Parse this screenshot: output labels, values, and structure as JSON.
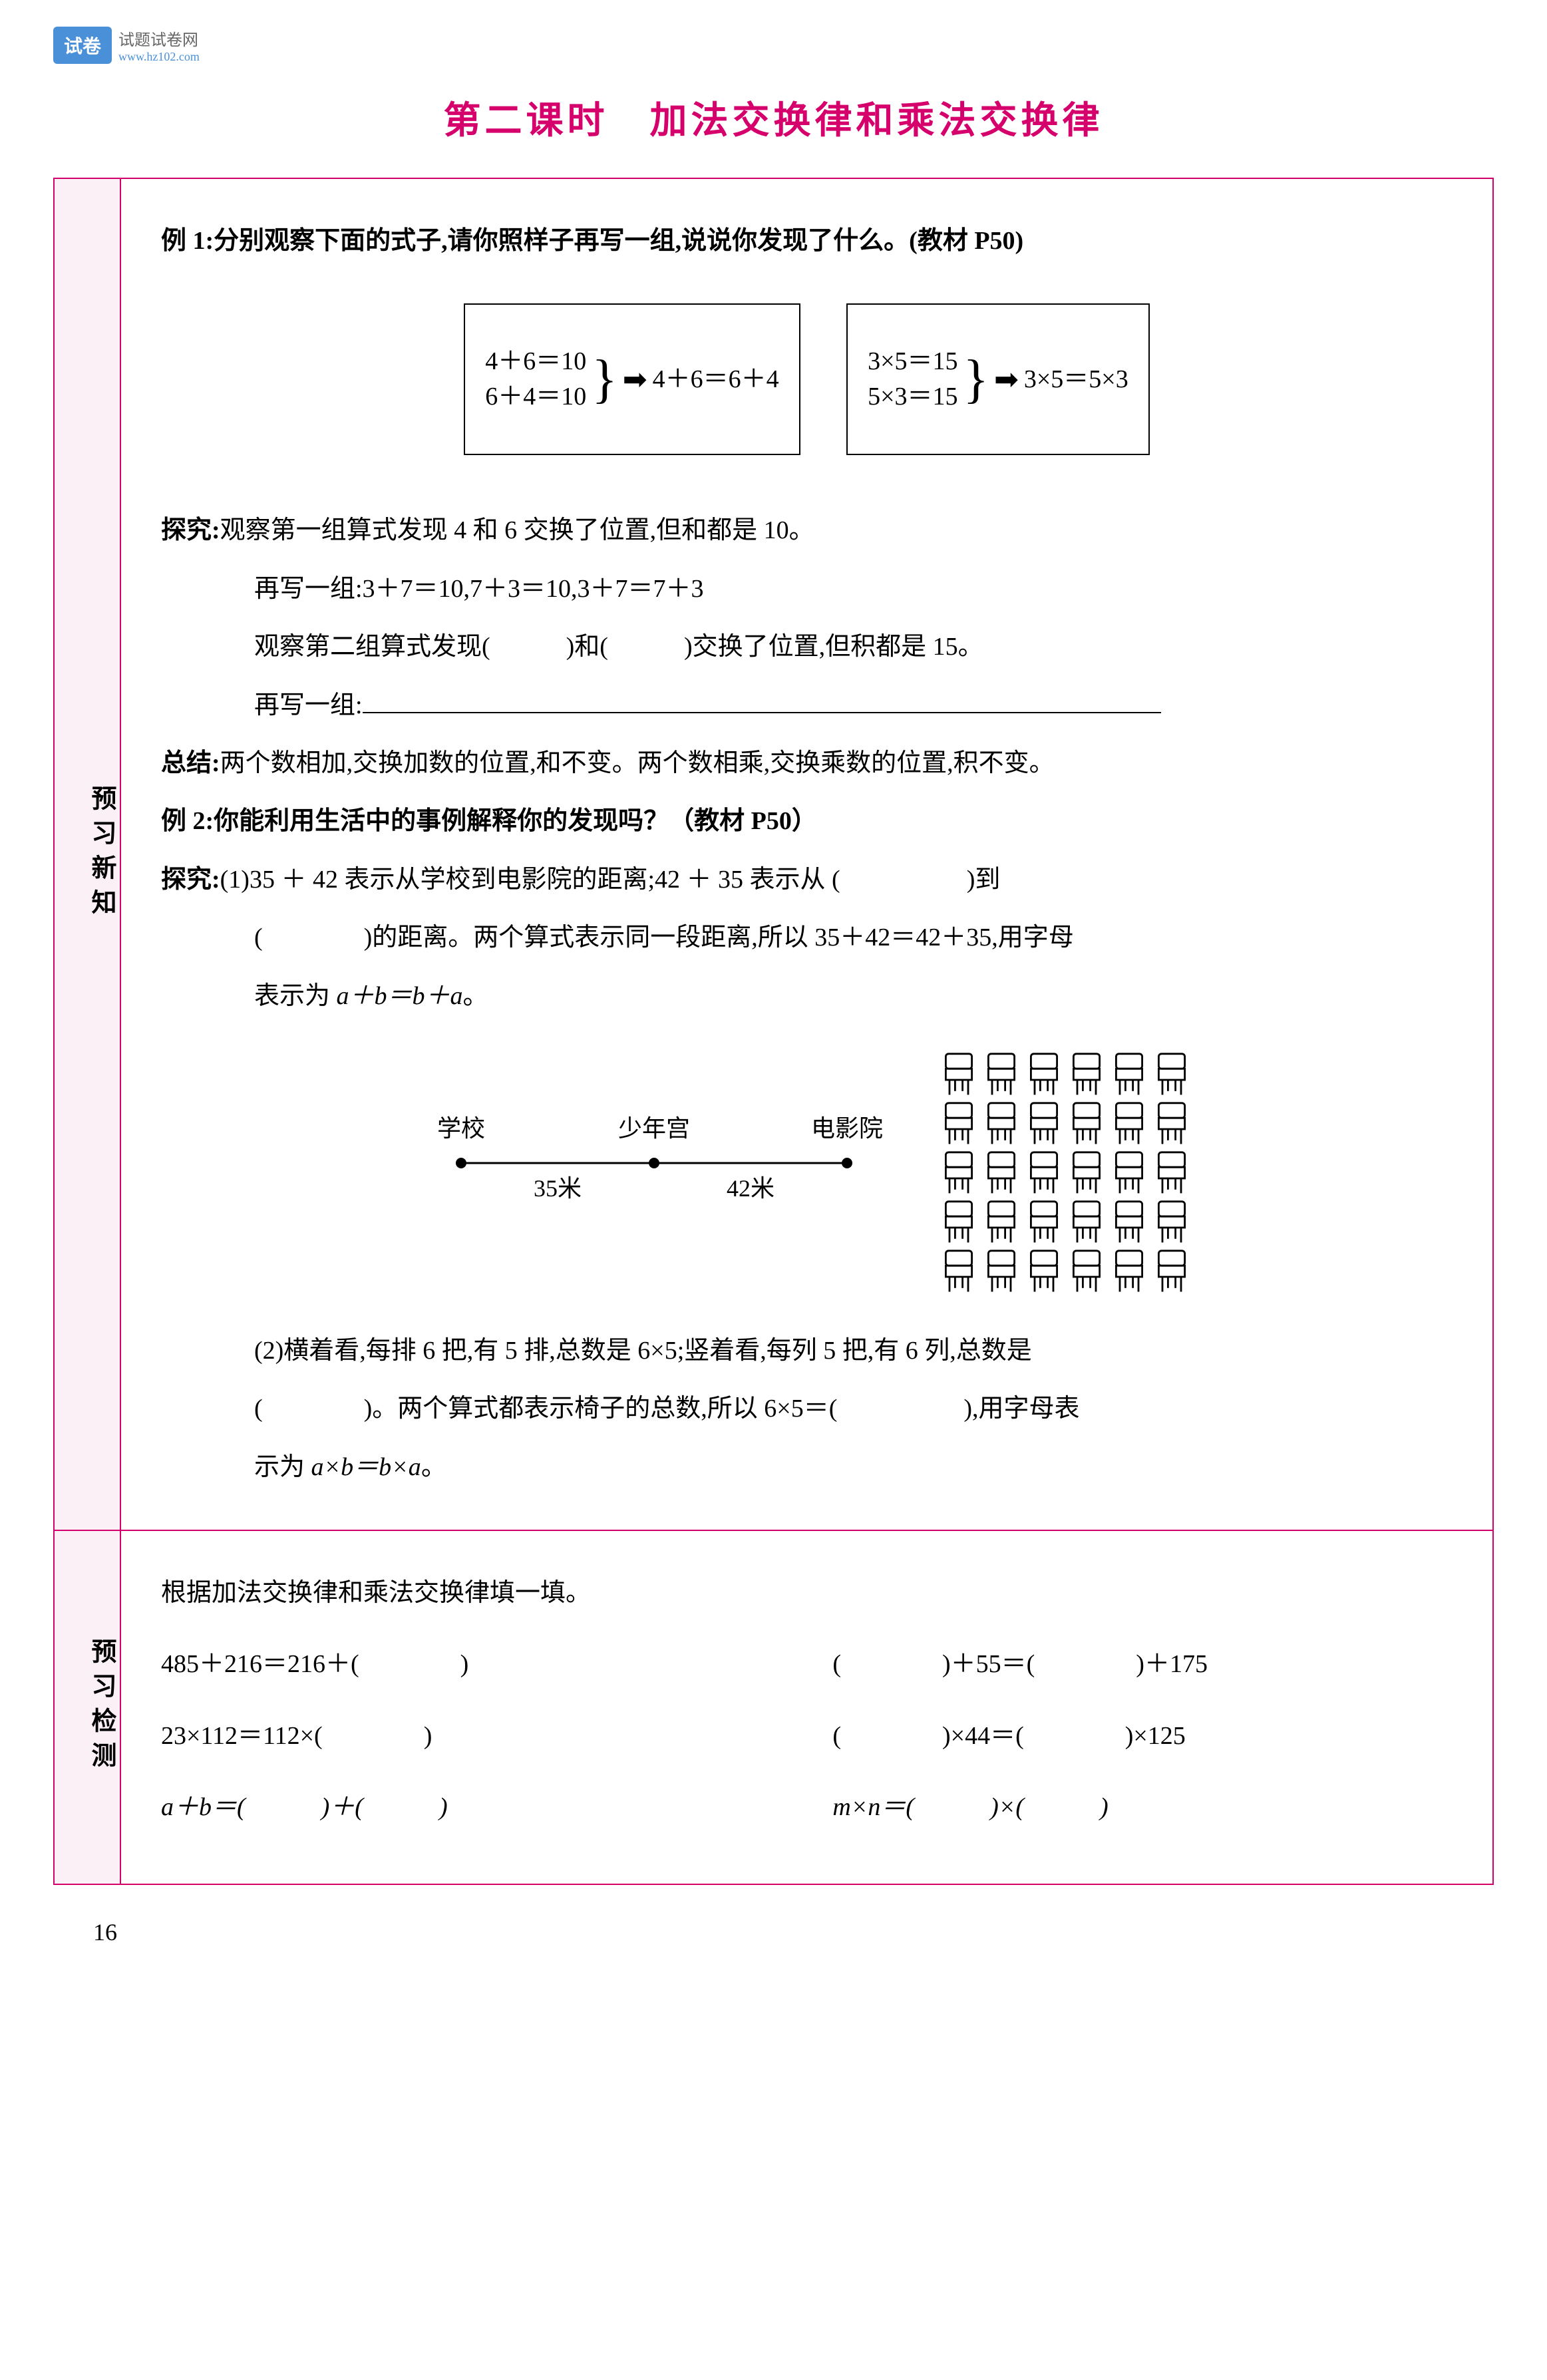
{
  "colors": {
    "accent": "#d6006c",
    "logo_bg": "#4a90d9",
    "section_bg": "#faf0f6",
    "text": "#000000",
    "background": "#ffffff"
  },
  "typography": {
    "body_fontsize": 38,
    "title_fontsize": 56,
    "line_height": 2.3
  },
  "logo": {
    "badge": "试卷",
    "text": "试题试卷网",
    "url": "www.hz102.com"
  },
  "title": "第二课时　加法交换律和乘法交换律",
  "sections": {
    "preview_new": {
      "label": "预习新知",
      "example1": {
        "heading": "例 1:",
        "text": "分别观察下面的式子,请你照样子再写一组,说说你发现了什么。(教材 P50)",
        "box1_line1": "4＋6＝10",
        "box1_line2": "6＋4＝10",
        "box1_result": "4＋6＝6＋4",
        "box2_line1": "3×5＝15",
        "box2_line2": "5×3＝15",
        "box2_result": "3×5＝5×3",
        "inquiry_label": "探究:",
        "inquiry1": "观察第一组算式发现 4 和 6 交换了位置,但和都是 10。",
        "inquiry2": "再写一组:3＋7＝10,7＋3＝10,3＋7＝7＋3",
        "inquiry3a": "观察第二组算式发现(　　　)和(　　　)交换了位置,但积都是 15。",
        "inquiry4": "再写一组:",
        "summary_label": "总结:",
        "summary": "两个数相加,交换加数的位置,和不变。两个数相乘,交换乘数的位置,积不变。"
      },
      "example2": {
        "heading": "例 2:",
        "text": "你能利用生活中的事例解释你的发现吗？（教材 P50）",
        "inquiry_label": "探究:",
        "part1a": "(1)35 ＋ 42 表示从学校到电影院的距离;42 ＋ 35 表示从 (",
        "part1b": ")到",
        "part1c": "(　　　　)的距离。两个算式表示同一段距离,所以 35＋42＝42＋35,用字母",
        "part1d": "表示为 a＋b＝b＋a。",
        "diagram": {
          "point1": "学校",
          "point2": "少年宫",
          "point3": "电影院",
          "dist1": "35米",
          "dist2": "42米"
        },
        "chairs": {
          "rows": 5,
          "cols": 6
        },
        "part2a": "(2)横着看,每排 6 把,有 5 排,总数是 6×5;竖着看,每列 5 把,有 6 列,总数是",
        "part2b": "(　　　　)。两个算式都表示椅子的总数,所以 6×5＝(　　　　　),用字母表",
        "part2c": "示为 a×b＝b×a。"
      }
    },
    "preview_test": {
      "label": "预习检测",
      "intro": "根据加法交换律和乘法交换律填一填。",
      "rows": [
        {
          "left": "485＋216＝216＋(　　　　)",
          "right": "(　　　　)＋55＝(　　　　)＋175"
        },
        {
          "left": "23×112＝112×(　　　　)",
          "right": "(　　　　)×44＝(　　　　)×125"
        },
        {
          "left": "a＋b＝(　　　)＋(　　　)",
          "right": "m×n＝(　　　)×(　　　)"
        }
      ]
    }
  },
  "page_number": "16"
}
